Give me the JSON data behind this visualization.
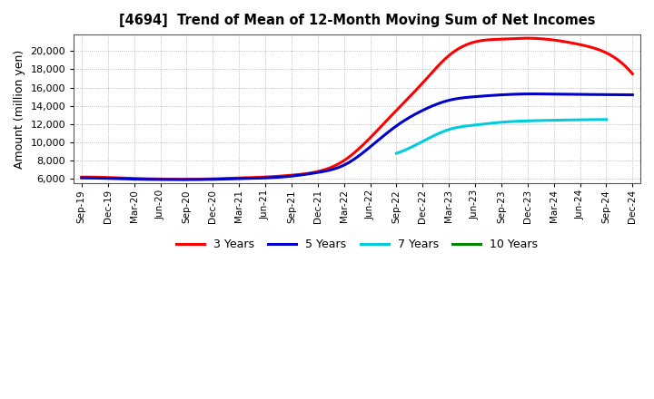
{
  "title": "[4694]  Trend of Mean of 12-Month Moving Sum of Net Incomes",
  "ylabel": "Amount (million yen)",
  "x_labels": [
    "Sep-19",
    "Dec-19",
    "Mar-20",
    "Jun-20",
    "Sep-20",
    "Dec-20",
    "Mar-21",
    "Jun-21",
    "Sep-21",
    "Dec-21",
    "Mar-22",
    "Jun-22",
    "Sep-22",
    "Dec-22",
    "Mar-23",
    "Jun-23",
    "Sep-23",
    "Dec-23",
    "Mar-24",
    "Jun-24",
    "Sep-24",
    "Dec-24"
  ],
  "ylim": [
    5500,
    21800
  ],
  "yticks": [
    6000,
    8000,
    10000,
    12000,
    14000,
    16000,
    18000,
    20000
  ],
  "series": {
    "3 Years": {
      "color": "#FF0000",
      "values": [
        6200,
        6150,
        6050,
        5980,
        5960,
        6000,
        6100,
        6200,
        6400,
        6800,
        8000,
        10500,
        13500,
        16500,
        19500,
        21000,
        21300,
        21400,
        21200,
        20700,
        19800,
        17500
      ]
    },
    "5 Years": {
      "color": "#0000CC",
      "values": [
        6100,
        6050,
        5970,
        5930,
        5920,
        5950,
        6020,
        6100,
        6300,
        6700,
        7500,
        9500,
        11800,
        13500,
        14600,
        15000,
        15200,
        15300,
        15280,
        15250,
        15220,
        15200
      ]
    },
    "7 Years": {
      "color": "#00CCDD",
      "values": [
        null,
        null,
        null,
        null,
        null,
        null,
        null,
        null,
        null,
        null,
        null,
        null,
        8800,
        10100,
        11400,
        11900,
        12200,
        12350,
        12420,
        12470,
        12500,
        null
      ]
    },
    "10 Years": {
      "color": "#008800",
      "values": [
        null,
        null,
        null,
        null,
        null,
        null,
        null,
        null,
        null,
        null,
        null,
        null,
        null,
        null,
        null,
        null,
        null,
        null,
        null,
        null,
        null,
        null
      ]
    }
  },
  "legend_order": [
    "3 Years",
    "5 Years",
    "7 Years",
    "10 Years"
  ],
  "background_color": "#FFFFFF",
  "grid_color": "#AAAAAA"
}
